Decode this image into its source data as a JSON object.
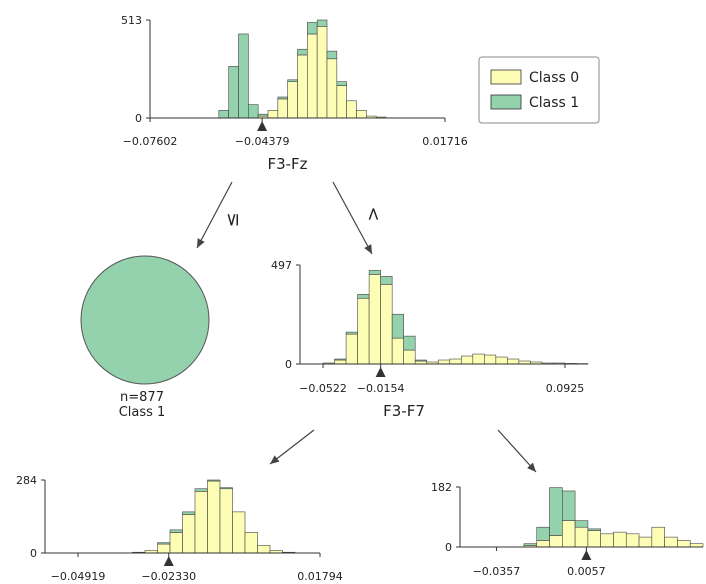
{
  "colors": {
    "class0": "#fefdb5",
    "class1": "#93d2ac",
    "edge": "#444444",
    "axis": "#333333"
  },
  "legend": {
    "items": [
      "Class 0",
      "Class 1"
    ]
  },
  "edges": {
    "left_label": "≤",
    "right_label": ">"
  },
  "leaf": {
    "n_label": "n=877",
    "class_label": "Class 1"
  },
  "chart_data": [
    {
      "type": "bar",
      "node": "root",
      "xlabel": "F3-Fz",
      "ylim": [
        0,
        513
      ],
      "y_ticks": [
        "513",
        "0"
      ],
      "x_ticks": [
        "−0.07602",
        "−0.04379",
        "0.01716"
      ],
      "split": "−0.04379",
      "series": [
        {
          "name": "Class 0",
          "values": [
            0,
            0,
            0,
            0,
            0,
            0,
            0,
            0,
            0,
            0,
            0,
            10,
            40,
            100,
            190,
            330,
            440,
            480,
            310,
            170,
            90,
            40,
            10,
            5,
            0,
            0,
            0,
            0,
            0,
            0
          ]
        },
        {
          "name": "Class 1",
          "values": [
            0,
            0,
            0,
            0,
            0,
            0,
            0,
            40,
            270,
            440,
            70,
            10,
            0,
            10,
            10,
            30,
            60,
            33,
            40,
            20,
            0,
            0,
            0,
            0,
            0,
            0,
            0,
            0,
            0,
            0
          ]
        }
      ]
    },
    {
      "type": "bar",
      "node": "right",
      "xlabel": "F3-F7",
      "ylim": [
        0,
        497
      ],
      "y_ticks": [
        "497",
        "0"
      ],
      "x_ticks": [
        "−0.0522",
        "−0.0154",
        "0.0925"
      ],
      "split": "−0.0154",
      "series": [
        {
          "name": "Class 0",
          "values": [
            0,
            0,
            5,
            20,
            150,
            330,
            450,
            400,
            130,
            70,
            15,
            10,
            20,
            25,
            40,
            50,
            45,
            35,
            25,
            15,
            10,
            5,
            5,
            3,
            2
          ]
        },
        {
          "name": "Class 1",
          "values": [
            0,
            0,
            0,
            5,
            10,
            20,
            20,
            40,
            120,
            70,
            5,
            0,
            0,
            0,
            0,
            0,
            0,
            0,
            0,
            0,
            0,
            0,
            0,
            0,
            0
          ]
        }
      ]
    },
    {
      "type": "bar",
      "node": "bottom-left",
      "ylim": [
        0,
        284
      ],
      "y_ticks": [
        "284",
        "0"
      ],
      "x_ticks": [
        "−0.04919",
        "−0.02330",
        "0.01794"
      ],
      "split": "−0.02330",
      "series": [
        {
          "name": "Class 0",
          "values": [
            0,
            0,
            0,
            0,
            0,
            0,
            0,
            3,
            10,
            35,
            80,
            150,
            240,
            280,
            250,
            160,
            80,
            30,
            10,
            3,
            0,
            0
          ]
        },
        {
          "name": "Class 1",
          "values": [
            0,
            0,
            0,
            0,
            0,
            0,
            0,
            0,
            0,
            5,
            10,
            10,
            10,
            4,
            4,
            0,
            0,
            0,
            0,
            0,
            0,
            0
          ]
        }
      ]
    },
    {
      "type": "bar",
      "node": "bottom-right",
      "ylim": [
        0,
        182
      ],
      "y_ticks": [
        "182",
        "0"
      ],
      "x_ticks": [
        "−0.0357",
        "0.0057"
      ],
      "split": "0.0057",
      "series": [
        {
          "name": "Class 0",
          "values": [
            0,
            0,
            0,
            0,
            0,
            5,
            20,
            35,
            80,
            60,
            50,
            40,
            45,
            40,
            30,
            60,
            30,
            20,
            10
          ]
        },
        {
          "name": "Class 1",
          "values": [
            0,
            0,
            0,
            0,
            0,
            5,
            40,
            145,
            90,
            20,
            5,
            0,
            0,
            0,
            0,
            0,
            0,
            0,
            0
          ]
        }
      ]
    }
  ]
}
